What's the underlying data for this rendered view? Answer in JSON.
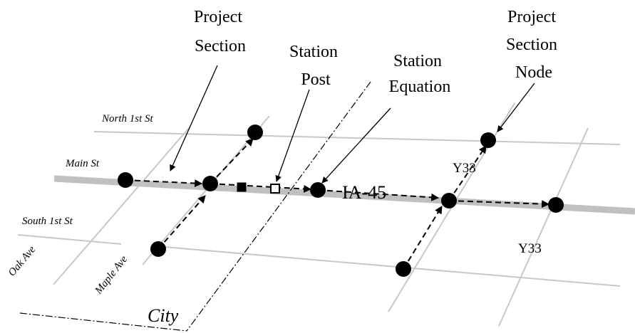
{
  "callouts": {
    "project_section": [
      "Project",
      "Section"
    ],
    "station_post": [
      "Station",
      "Post"
    ],
    "station_equation": [
      "Station",
      "Equation"
    ],
    "project_section_node": [
      "Project",
      "Section",
      "Node"
    ]
  },
  "streets": {
    "north_1st": "North 1st St",
    "main": "Main St",
    "south_1st": "South 1st St",
    "oak": "Oak Ave",
    "maple": "Maple Ave"
  },
  "routes": {
    "highway": "IA-45",
    "y33_upper": "Y33",
    "y33_lower": "Y33"
  },
  "city_label": "City",
  "colors": {
    "road": "#c8c8c8",
    "highway": "#bdbdbd",
    "ink": "#000000"
  }
}
